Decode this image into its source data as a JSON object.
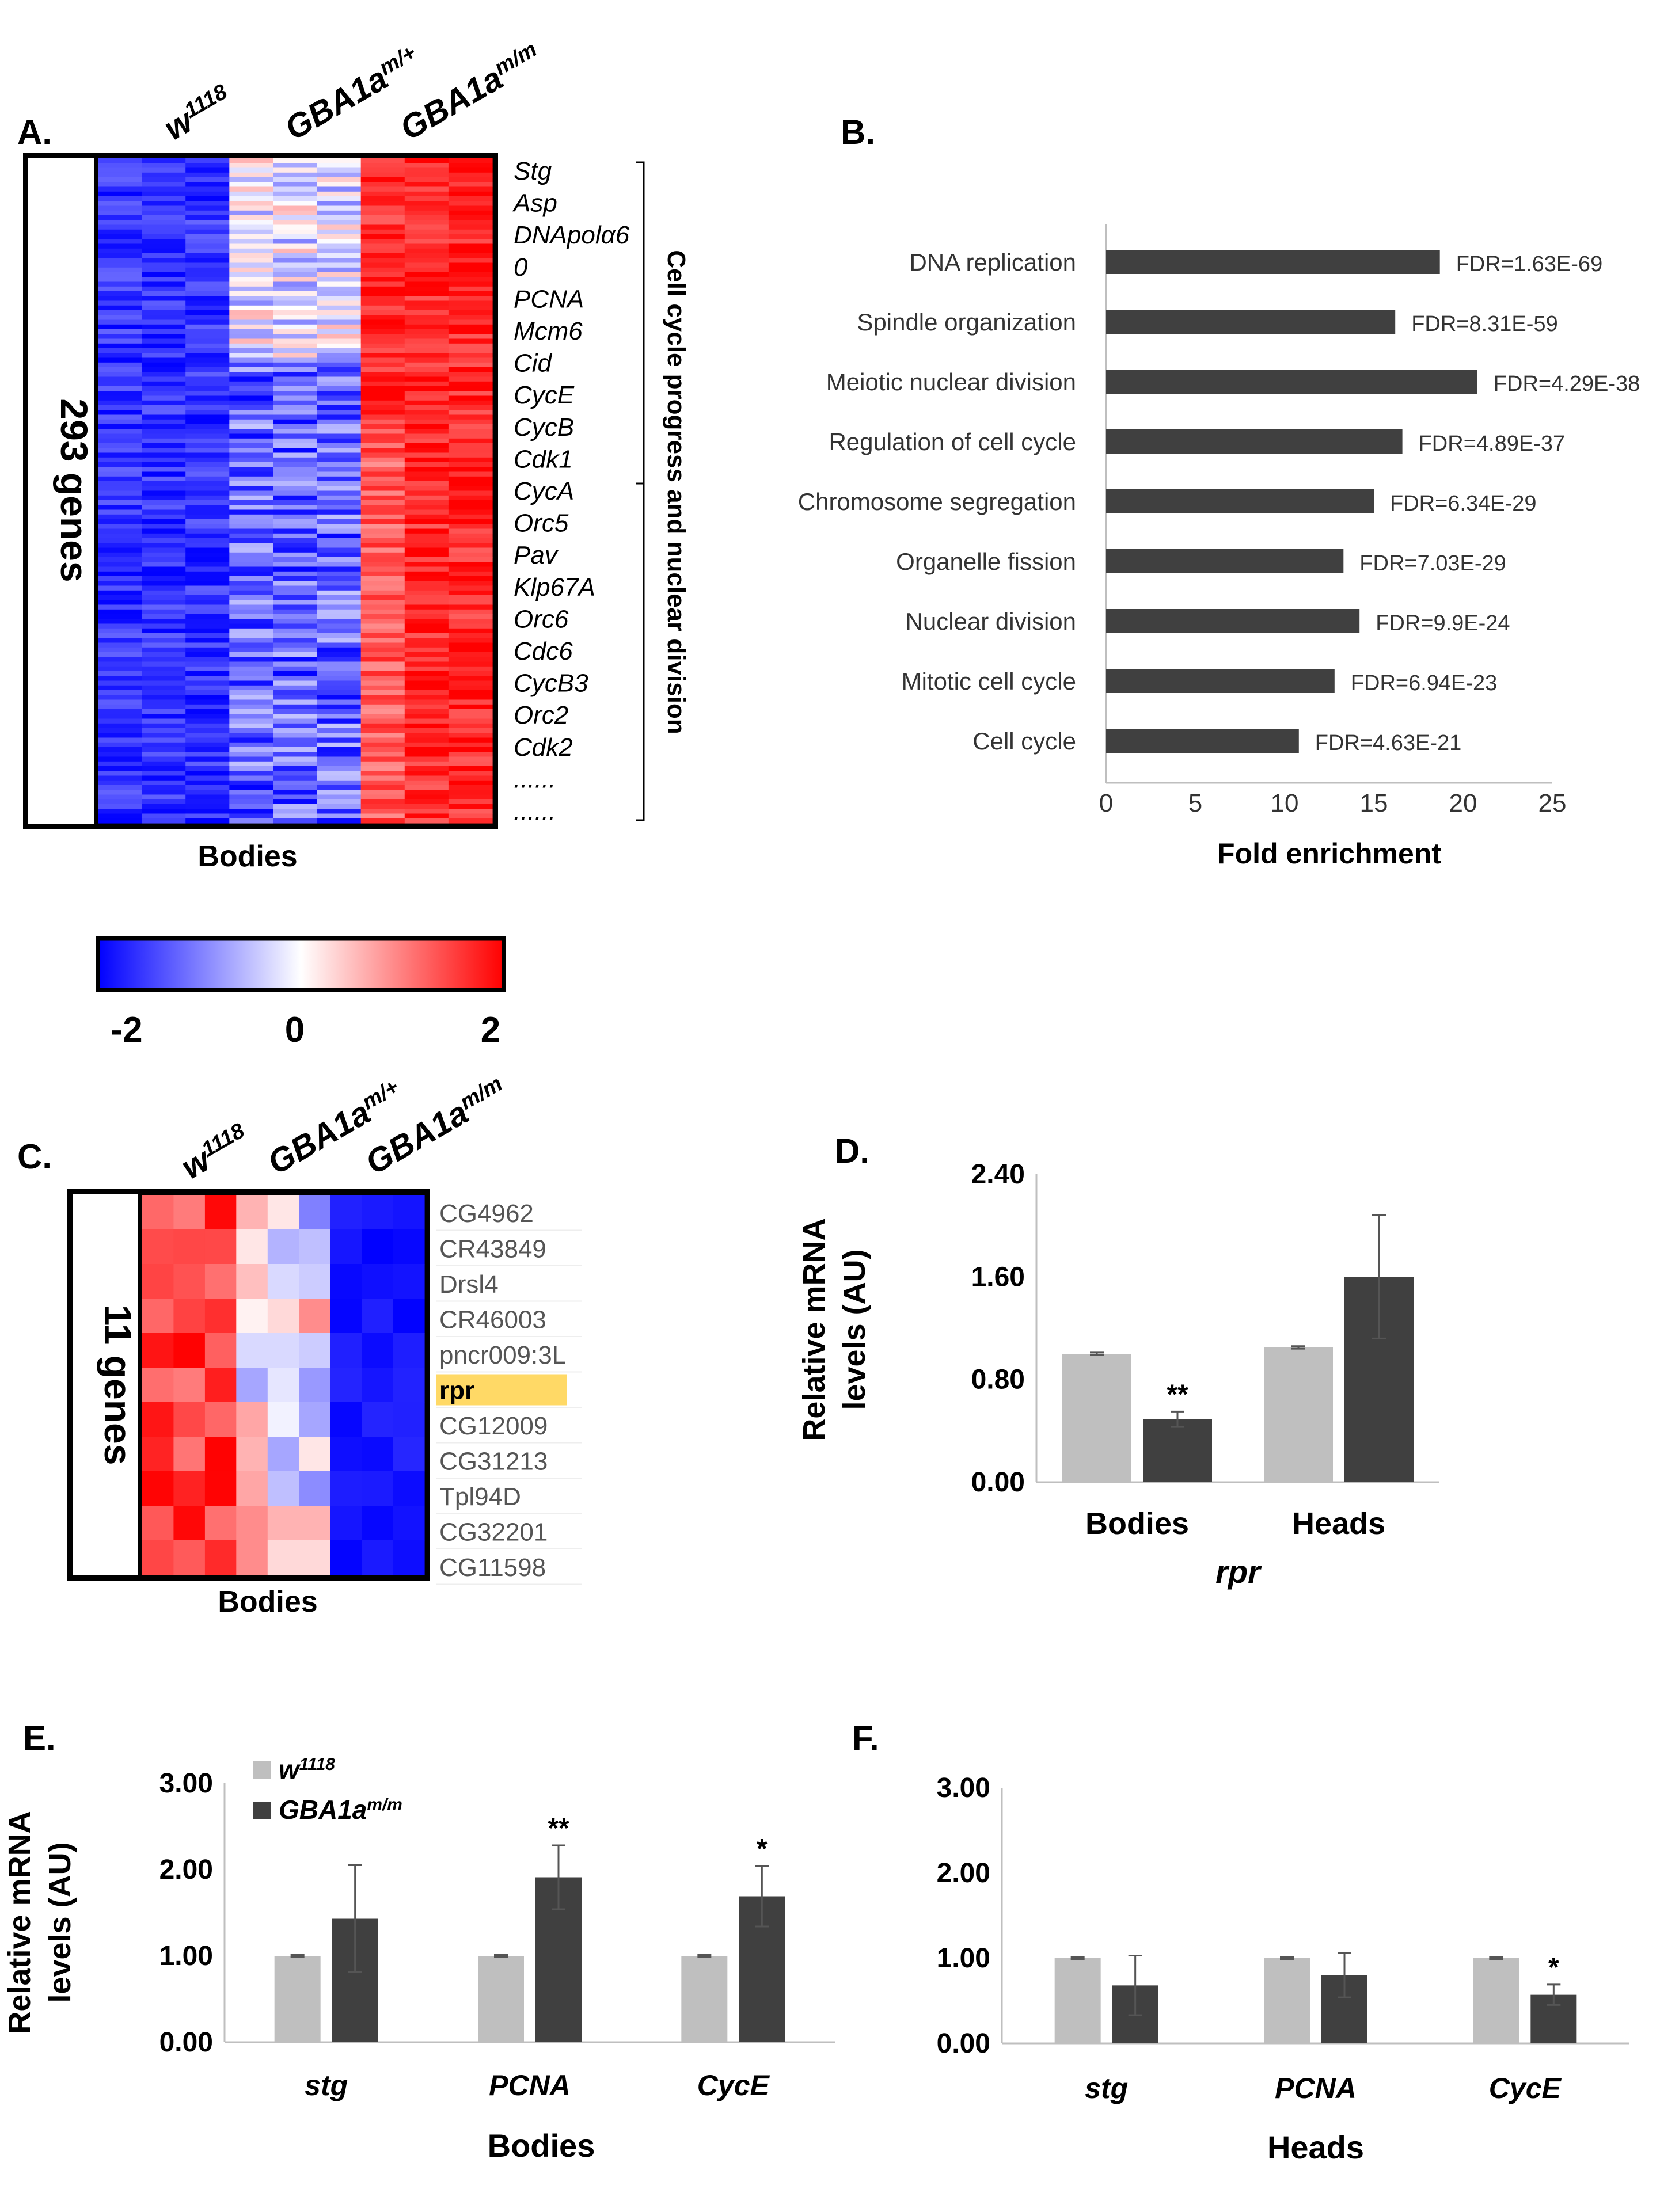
{
  "panels": {
    "A": {
      "letter": "A.",
      "genotypes": [
        {
          "base": "w",
          "sup": "1118"
        },
        {
          "base": "GBA1a",
          "sup": "m/+"
        },
        {
          "base": "GBA1a",
          "sup": "m/m"
        }
      ],
      "side_label": "293 genes",
      "genes": [
        "Stg",
        "Asp",
        "DNApolα6",
        "0",
        "PCNA",
        "Mcm6",
        "Cid",
        "CycE",
        "CycB",
        "Cdk1",
        "CycA",
        "Orc5",
        "Pav",
        "Klp67A",
        "Orc6",
        "Cdc6",
        "CycB3",
        "Orc2",
        "Cdk2",
        "......",
        "......"
      ],
      "bracket_label": "Cell cycle progress and nuclear division",
      "xlabel": "Bodies"
    },
    "scale": {
      "ticks": [
        "-2",
        "0",
        "2"
      ],
      "colors": {
        "low": "#0000ff",
        "mid": "#ffffff",
        "high": "#ff0000"
      }
    },
    "C": {
      "letter": "C.",
      "genotypes": [
        {
          "base": "w",
          "sup": "1118"
        },
        {
          "base": "GBA1a",
          "sup": "m/+"
        },
        {
          "base": "GBA1a",
          "sup": "m/m"
        }
      ],
      "side_label": "11 genes",
      "genes": [
        "CG4962",
        "CR43849",
        "Drsl4",
        "CR46003",
        "pncr009:3L",
        "rpr",
        "CG12009",
        "CG31213",
        "Tpl94D",
        "CG32201",
        "CG11598"
      ],
      "highlight": "rpr",
      "highlight_color": "#ffd966",
      "xlabel": "Bodies"
    },
    "D": {
      "letter": "D."
    },
    "E": {
      "letter": "E."
    },
    "F": {
      "letter": "F."
    }
  },
  "colors": {
    "w1118": "#bfbfbf",
    "gba": "#404040",
    "bar": "#404040"
  },
  "chart_data": [
    {
      "id": "B",
      "type": "bar",
      "orientation": "horizontal",
      "title": "B.",
      "categories": [
        "DNA replication",
        "Spindle organization",
        "Meiotic nuclear division",
        "Regulation of cell cycle",
        "Chromosome segregation",
        "Organelle fission",
        "Nuclear division",
        "Mitotic cell cycle",
        "Cell cycle"
      ],
      "values": [
        18.7,
        16.2,
        20.8,
        16.6,
        15.0,
        13.3,
        14.2,
        12.8,
        10.8
      ],
      "annotations": [
        "FDR=1.63E-69",
        "FDR=8.31E-59",
        "FDR=4.29E-38",
        "FDR=4.89E-37",
        "FDR=6.34E-29",
        "FDR=7.03E-29",
        "FDR=9.9E-24",
        "FDR=6.94E-23",
        "FDR=4.63E-21"
      ],
      "xlabel": "Fold enrichment",
      "xlim": [
        0,
        25
      ],
      "xticks": [
        "0",
        "5",
        "10",
        "15",
        "20",
        "25"
      ],
      "grid": false
    },
    {
      "id": "D",
      "type": "bar",
      "categories": [
        "Bodies",
        "Heads"
      ],
      "series": [
        {
          "values": [
            1.0,
            1.05
          ],
          "errors": [
            0.01,
            0.01
          ]
        },
        {
          "values": [
            0.49,
            1.6
          ],
          "errors": [
            0.06,
            0.48
          ]
        }
      ],
      "significance": [
        [
          "",
          ""
        ],
        [
          "**",
          ""
        ]
      ],
      "ylabel": "Relative mRNA levels (AU)",
      "xlabel": "rpr",
      "ylim": [
        0,
        2.4
      ],
      "yticks": [
        "0.00",
        "0.80",
        "1.60",
        "2.40"
      ],
      "grid": false
    },
    {
      "id": "E",
      "type": "bar",
      "categories": [
        "stg",
        "PCNA",
        "CycE"
      ],
      "series": [
        {
          "name": "w1118",
          "label_base": "w",
          "label_sup": "1118",
          "values": [
            1.0,
            1.0,
            1.0
          ],
          "errors": [
            0.01,
            0.01,
            0.01
          ]
        },
        {
          "name": "GBA1am/m",
          "label_base": "GBA1a",
          "label_sup": "m/m",
          "values": [
            1.43,
            1.91,
            1.69
          ],
          "errors": [
            0.62,
            0.37,
            0.35
          ]
        }
      ],
      "significance": [
        [
          "",
          "",
          ""
        ],
        [
          "",
          "**",
          "*"
        ]
      ],
      "ylabel": "Relative mRNA levels (AU)",
      "xlabel": "Bodies",
      "ylim": [
        0,
        3.0
      ],
      "yticks": [
        "0.00",
        "1.00",
        "2.00",
        "3.00"
      ],
      "legend": "top-left",
      "grid": false
    },
    {
      "id": "F",
      "type": "bar",
      "categories": [
        "stg",
        "PCNA",
        "CycE"
      ],
      "series": [
        {
          "values": [
            1.0,
            1.0,
            1.0
          ],
          "errors": [
            0.01,
            0.01,
            0.01
          ]
        },
        {
          "values": [
            0.68,
            0.8,
            0.57
          ],
          "errors": [
            0.35,
            0.26,
            0.12
          ]
        }
      ],
      "significance": [
        [
          "",
          "",
          ""
        ],
        [
          "",
          "",
          "*"
        ]
      ],
      "xlabel": "Heads",
      "ylim": [
        0,
        3.0
      ],
      "yticks": [
        "0.00",
        "1.00",
        "2.00",
        "3.00"
      ],
      "grid": false
    }
  ]
}
